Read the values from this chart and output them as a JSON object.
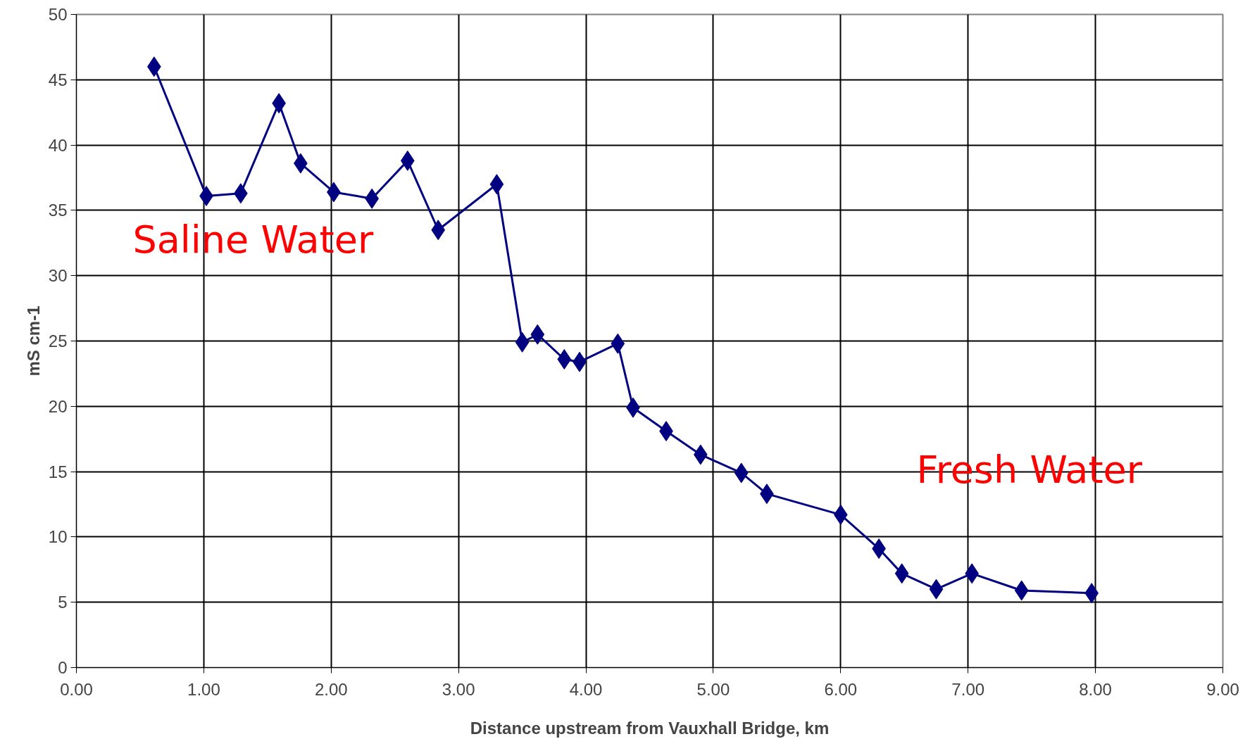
{
  "chart_data": {
    "type": "line",
    "xlabel": "Distance upstream from Vauxhall Bridge, km",
    "ylabel": "mS cm-1",
    "xlim": [
      0,
      9
    ],
    "xticks": [
      {
        "value": 0,
        "label": "0.00"
      },
      {
        "value": 1,
        "label": "1.00"
      },
      {
        "value": 2,
        "label": "2.00"
      },
      {
        "value": 3,
        "label": "3.00"
      },
      {
        "value": 4,
        "label": "4.00"
      },
      {
        "value": 5,
        "label": "5.00"
      },
      {
        "value": 6,
        "label": "6.00"
      },
      {
        "value": 7,
        "label": "7.00"
      },
      {
        "value": 8,
        "label": "8.00"
      },
      {
        "value": 9,
        "label": "9.00"
      }
    ],
    "ylim": [
      0,
      50
    ],
    "yticks": [
      0,
      5,
      10,
      15,
      20,
      25,
      30,
      35,
      40,
      45,
      50
    ],
    "grid": true,
    "marker": "diamond",
    "line_style": "solid",
    "series": [
      {
        "color": "#000080",
        "x": [
          0.61,
          1.02,
          1.29,
          1.59,
          1.76,
          2.02,
          2.32,
          2.6,
          2.84,
          3.3,
          3.5,
          3.62,
          3.83,
          3.95,
          4.25,
          4.37,
          4.63,
          4.9,
          5.22,
          5.42,
          6.0,
          6.3,
          6.48,
          6.75,
          7.03,
          7.42,
          7.97
        ],
        "values": [
          46.0,
          36.1,
          36.3,
          43.2,
          38.6,
          36.4,
          35.9,
          38.8,
          33.5,
          37.0,
          24.9,
          25.5,
          23.6,
          23.4,
          24.8,
          19.9,
          18.1,
          16.3,
          14.9,
          13.3,
          11.7,
          9.1,
          7.2,
          6.0,
          7.2,
          5.9,
          5.7
        ]
      }
    ],
    "annotations": [
      "Saline Water",
      "Fresh Water"
    ]
  }
}
